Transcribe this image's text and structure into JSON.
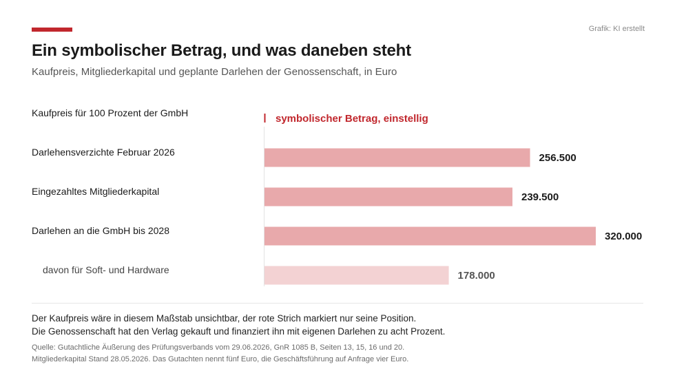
{
  "header": {
    "credit": "Grafik: KI erstellt",
    "title": "Ein symbolischer Betrag, und was daneben steht",
    "subtitle": "Kaufpreis, Mitgliederkapital und geplante Darlehen der Genossenschaft, in Euro"
  },
  "colors": {
    "accent": "#c1272d",
    "bar_main": "#e8a9ab",
    "bar_sub": "#f3d2d3",
    "marker": "#c1272d"
  },
  "chart_data": {
    "type": "bar",
    "orientation": "horizontal",
    "categories": [
      "Kaufpreis für 100 Prozent der GmbH",
      "Darlehensverzichte Februar 2026",
      "Eingezahltes Mitgliederkapital",
      "Darlehen an die GmbH bis 2028",
      "davon für Soft- und Hardware"
    ],
    "values": [
      5,
      256500,
      239500,
      320000,
      178000
    ],
    "value_labels": [
      "symbolischer Betrag, einstellig",
      "256.500",
      "239.500",
      "320.000",
      "178.000"
    ],
    "sub_item": [
      false,
      false,
      false,
      false,
      true
    ],
    "marker_only": [
      true,
      false,
      false,
      false,
      false
    ],
    "xlim": [
      0,
      320000
    ],
    "grid": false,
    "legend": "none"
  },
  "footer": {
    "note_line1": "Der Kaufpreis wäre in diesem Maßstab unsichtbar, der rote Strich markiert nur seine Position.",
    "note_line2": "Die Genossenschaft hat den Verlag gekauft und finanziert ihn mit eigenen Darlehen zu acht Prozent.",
    "source_line1": "Quelle: Gutachtliche Äußerung des Prüfungsverbands vom 29.06.2026, GnR 1085 B, Seiten 13, 15, 16 und 20.",
    "source_line2": "Mitgliederkapital Stand 28.05.2026. Das Gutachten nennt fünf Euro, die Geschäftsführung auf Anfrage vier Euro."
  }
}
